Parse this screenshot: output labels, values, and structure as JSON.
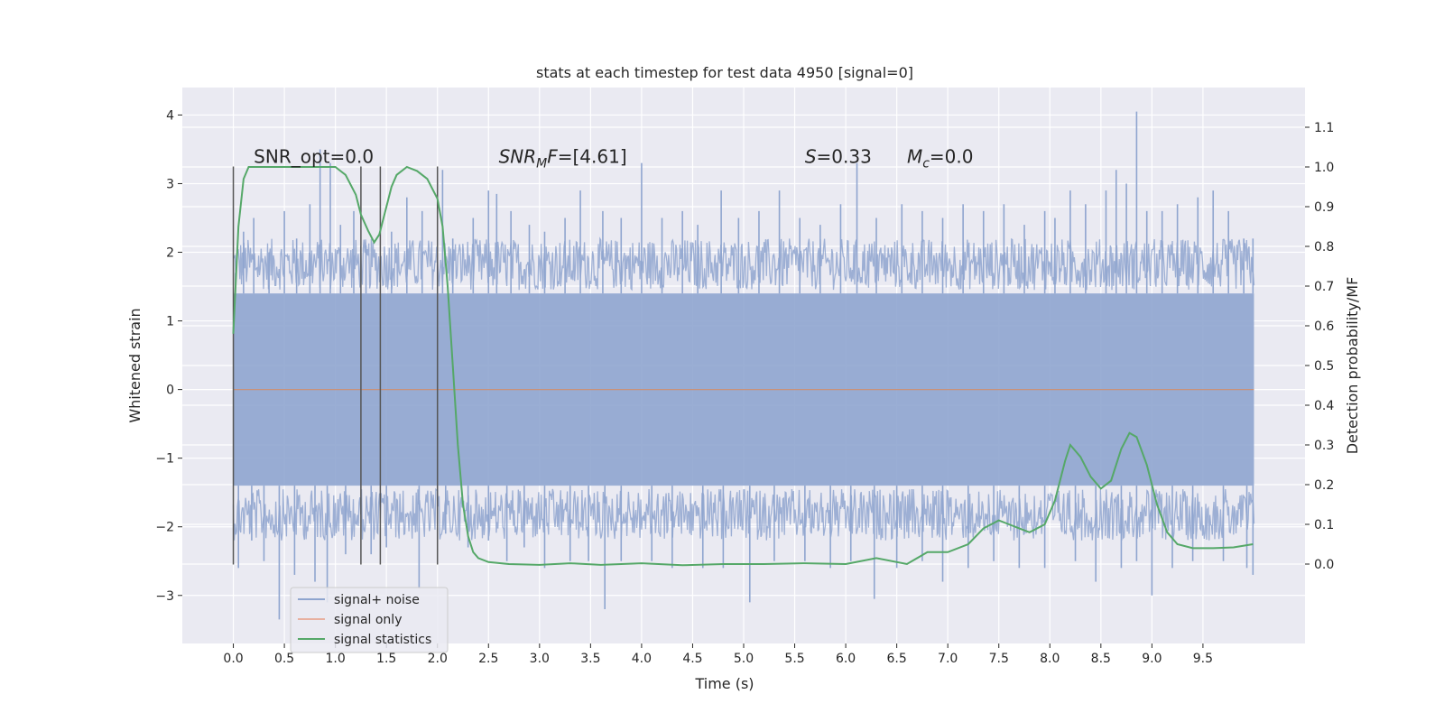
{
  "chart_data": {
    "type": "line",
    "title": "stats at each timestep for test data 4950 [signal=0]",
    "xlabel": "Time (s)",
    "ylabel": "Whitened strain",
    "ylabel_right": "Detection probability/MF",
    "xlim": [
      -0.5,
      10.5
    ],
    "ylim": [
      -3.7,
      4.4
    ],
    "ylim_right": [
      -0.2,
      1.2
    ],
    "x_ticks": [
      "0.0",
      "0.5",
      "1.0",
      "1.5",
      "2.0",
      "2.5",
      "3.0",
      "3.5",
      "4.0",
      "4.5",
      "5.0",
      "5.5",
      "6.0",
      "6.5",
      "7.0",
      "7.5",
      "8.0",
      "8.5",
      "9.0",
      "9.5"
    ],
    "y_ticks": [
      "−3",
      "−2",
      "−1",
      "0",
      "1",
      "2",
      "3",
      "4"
    ],
    "y_ticks_right": [
      "0.0",
      "0.1",
      "0.2",
      "0.3",
      "0.4",
      "0.5",
      "0.6",
      "0.7",
      "0.8",
      "0.9",
      "1.0",
      "1.1"
    ],
    "grid": true,
    "legend_position": "lower-left",
    "annotations": [
      {
        "label": "SNR_opt=0.0",
        "x": 0.2,
        "y": 3.3
      },
      {
        "label": "SNR_MF=[4.61]",
        "x": 2.6,
        "y": 3.3
      },
      {
        "label": "S=0.33",
        "x": 5.6,
        "y": 3.3
      },
      {
        "label": "M_c=0.0",
        "x": 6.6,
        "y": 3.3
      }
    ],
    "vlines": [
      {
        "x": 0.0,
        "ymin": -2.55,
        "ymax": 3.25
      },
      {
        "x": 1.25,
        "ymin": -2.55,
        "ymax": 3.25
      },
      {
        "x": 1.44,
        "ymin": -2.55,
        "ymax": 3.25
      },
      {
        "x": 2.0,
        "ymin": -2.55,
        "ymax": 3.25
      }
    ],
    "series": [
      {
        "name": "signal+ noise",
        "color": "#8fa5cf",
        "axis": "left",
        "band": [
          -1.4,
          1.4
        ],
        "x_range": [
          0.0,
          10.0
        ],
        "spikes_up": [
          [
            0.02,
            1.7
          ],
          [
            0.1,
            2.3
          ],
          [
            0.2,
            2.5
          ],
          [
            0.35,
            2.0
          ],
          [
            0.5,
            2.6
          ],
          [
            0.62,
            2.2
          ],
          [
            0.75,
            2.7
          ],
          [
            0.85,
            3.5
          ],
          [
            0.95,
            3.3
          ],
          [
            1.05,
            2.4
          ],
          [
            1.18,
            2.6
          ],
          [
            1.3,
            2.1
          ],
          [
            1.55,
            2.3
          ],
          [
            1.7,
            2.8
          ],
          [
            1.85,
            2.6
          ],
          [
            2.05,
            3.2
          ],
          [
            2.15,
            2.2
          ],
          [
            2.35,
            2.5
          ],
          [
            2.5,
            2.9
          ],
          [
            2.58,
            2.85
          ],
          [
            2.72,
            2.6
          ],
          [
            2.9,
            2.4
          ],
          [
            3.05,
            2.3
          ],
          [
            3.25,
            2.5
          ],
          [
            3.4,
            2.9
          ],
          [
            3.62,
            2.6
          ],
          [
            3.8,
            2.5
          ],
          [
            4.0,
            3.3
          ],
          [
            4.2,
            2.5
          ],
          [
            4.4,
            2.6
          ],
          [
            4.55,
            2.4
          ],
          [
            4.78,
            2.9
          ],
          [
            4.95,
            2.5
          ],
          [
            5.15,
            2.6
          ],
          [
            5.35,
            2.9
          ],
          [
            5.55,
            2.5
          ],
          [
            5.75,
            2.4
          ],
          [
            5.95,
            2.7
          ],
          [
            6.11,
            3.3
          ],
          [
            6.3,
            2.5
          ],
          [
            6.55,
            2.7
          ],
          [
            6.75,
            2.6
          ],
          [
            6.95,
            2.5
          ],
          [
            7.15,
            2.7
          ],
          [
            7.35,
            2.6
          ],
          [
            7.55,
            2.7
          ],
          [
            7.75,
            2.4
          ],
          [
            7.95,
            2.6
          ],
          [
            8.05,
            2.5
          ],
          [
            8.2,
            2.9
          ],
          [
            8.35,
            2.7
          ],
          [
            8.55,
            2.9
          ],
          [
            8.65,
            3.2
          ],
          [
            8.75,
            3.0
          ],
          [
            8.85,
            4.05
          ],
          [
            8.95,
            2.6
          ],
          [
            9.1,
            2.6
          ],
          [
            9.25,
            2.7
          ],
          [
            9.45,
            2.8
          ],
          [
            9.6,
            2.9
          ],
          [
            9.75,
            2.6
          ],
          [
            9.9,
            2.2
          ],
          [
            9.99,
            2.2
          ]
        ],
        "spikes_down": [
          [
            0.05,
            -2.6
          ],
          [
            0.18,
            -2.2
          ],
          [
            0.3,
            -2.5
          ],
          [
            0.45,
            -3.35
          ],
          [
            0.6,
            -2.7
          ],
          [
            0.8,
            -2.8
          ],
          [
            0.92,
            -3.1
          ],
          [
            1.1,
            -2.4
          ],
          [
            1.35,
            -2.4
          ],
          [
            1.5,
            -2.3
          ],
          [
            1.82,
            -2.9
          ],
          [
            2.08,
            -2.1
          ],
          [
            2.3,
            -2.3
          ],
          [
            2.5,
            -2.2
          ],
          [
            2.68,
            -2.5
          ],
          [
            2.85,
            -2.3
          ],
          [
            3.05,
            -2.6
          ],
          [
            3.3,
            -2.5
          ],
          [
            3.48,
            -2.5
          ],
          [
            3.64,
            -3.2
          ],
          [
            3.8,
            -2.5
          ],
          [
            4.1,
            -2.5
          ],
          [
            4.3,
            -2.6
          ],
          [
            4.6,
            -2.6
          ],
          [
            4.8,
            -2.6
          ],
          [
            5.06,
            -3.1
          ],
          [
            5.3,
            -2.5
          ],
          [
            5.6,
            -2.5
          ],
          [
            5.85,
            -2.6
          ],
          [
            6.05,
            -2.5
          ],
          [
            6.28,
            -3.05
          ],
          [
            6.5,
            -2.6
          ],
          [
            6.75,
            -2.5
          ],
          [
            6.95,
            -2.8
          ],
          [
            7.2,
            -2.6
          ],
          [
            7.45,
            -2.5
          ],
          [
            7.7,
            -2.6
          ],
          [
            7.95,
            -2.6
          ],
          [
            8.25,
            -2.5
          ],
          [
            8.45,
            -2.8
          ],
          [
            8.7,
            -2.6
          ],
          [
            8.85,
            -2.5
          ],
          [
            9.0,
            -3.0
          ],
          [
            9.2,
            -2.6
          ],
          [
            9.4,
            -2.5
          ],
          [
            9.7,
            -2.5
          ],
          [
            9.93,
            -2.6
          ],
          [
            9.99,
            -2.7
          ]
        ]
      },
      {
        "name": "signal only",
        "color": "#dd8452",
        "axis": "left",
        "x": [
          0.0,
          10.0
        ],
        "y": [
          0.0,
          0.0
        ]
      },
      {
        "name": "signal statistics",
        "color": "#55a868",
        "axis": "right",
        "x": [
          0.0,
          0.05,
          0.1,
          0.15,
          0.2,
          0.3,
          0.5,
          0.7,
          0.9,
          1.0,
          1.1,
          1.2,
          1.25,
          1.32,
          1.38,
          1.43,
          1.5,
          1.55,
          1.6,
          1.7,
          1.8,
          1.9,
          2.0,
          2.05,
          2.1,
          2.15,
          2.2,
          2.25,
          2.3,
          2.35,
          2.4,
          2.5,
          2.7,
          3.0,
          3.3,
          3.6,
          4.0,
          4.4,
          4.8,
          5.2,
          5.6,
          6.0,
          6.3,
          6.6,
          6.8,
          7.0,
          7.2,
          7.35,
          7.5,
          7.6,
          7.7,
          7.8,
          7.95,
          8.05,
          8.15,
          8.2,
          8.3,
          8.4,
          8.5,
          8.6,
          8.7,
          8.78,
          8.85,
          8.95,
          9.05,
          9.15,
          9.25,
          9.4,
          9.6,
          9.8,
          9.99
        ],
        "y": [
          0.58,
          0.85,
          0.97,
          1.0,
          1.0,
          1.0,
          1.0,
          1.0,
          1.0,
          1.0,
          0.98,
          0.93,
          0.88,
          0.84,
          0.81,
          0.83,
          0.9,
          0.95,
          0.98,
          1.0,
          0.99,
          0.97,
          0.92,
          0.85,
          0.7,
          0.5,
          0.3,
          0.15,
          0.07,
          0.03,
          0.015,
          0.005,
          0.0,
          -0.002,
          0.002,
          -0.002,
          0.002,
          -0.003,
          0.0,
          0.0,
          0.002,
          0.0,
          0.015,
          0.0,
          0.03,
          0.03,
          0.05,
          0.09,
          0.11,
          0.1,
          0.09,
          0.08,
          0.1,
          0.16,
          0.26,
          0.3,
          0.27,
          0.22,
          0.19,
          0.21,
          0.29,
          0.33,
          0.32,
          0.25,
          0.15,
          0.08,
          0.05,
          0.04,
          0.04,
          0.042,
          0.05
        ]
      }
    ]
  }
}
